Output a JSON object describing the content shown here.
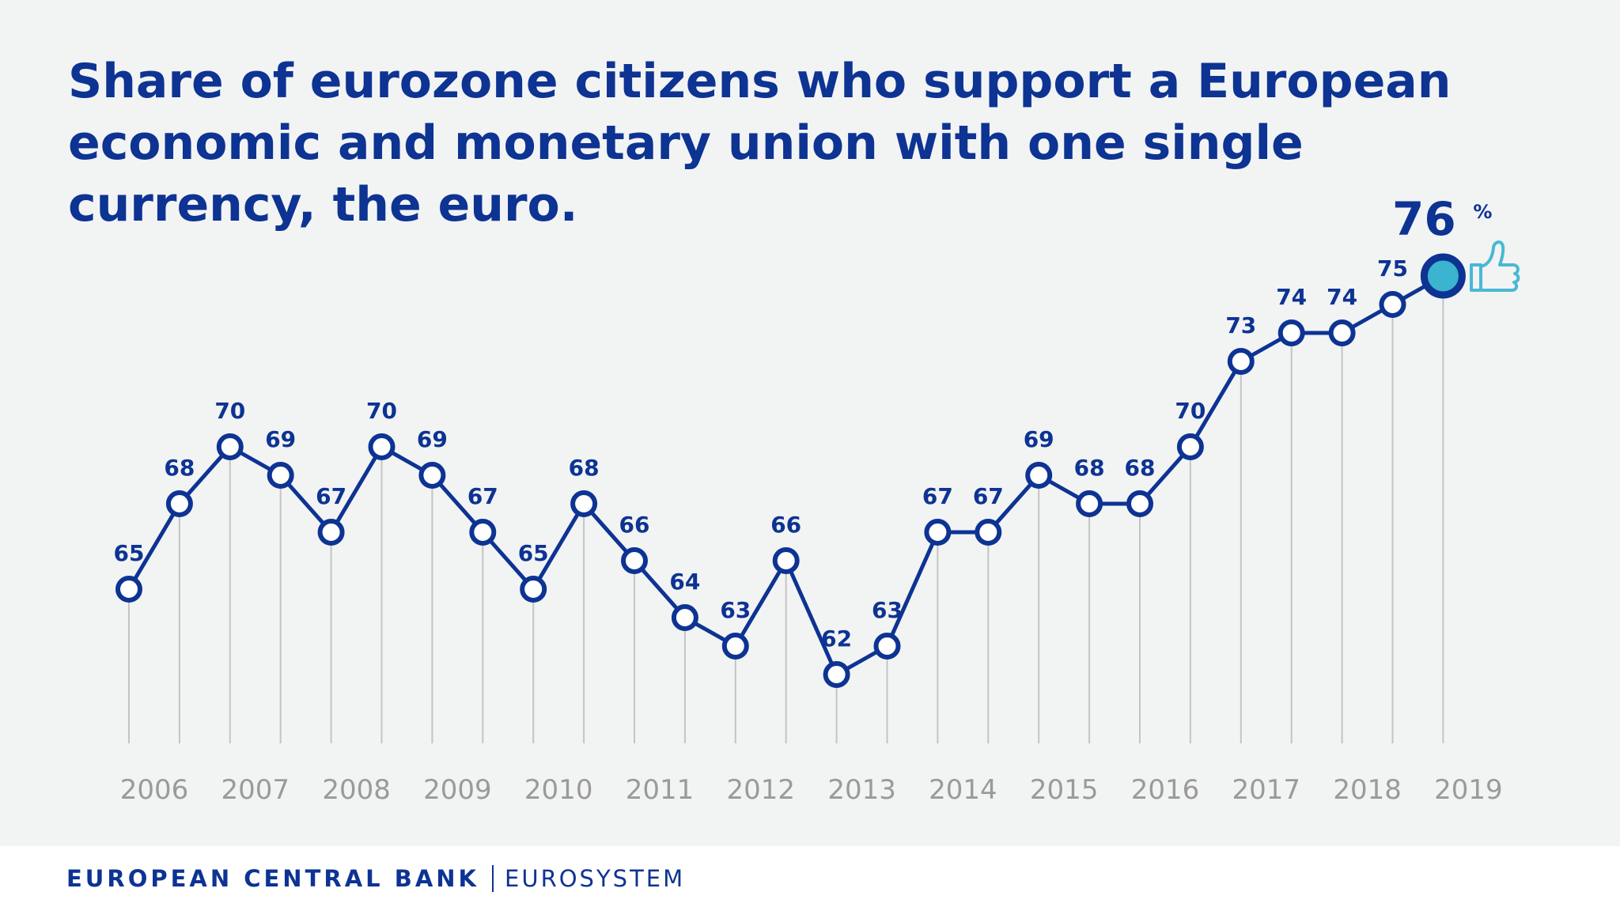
{
  "chart_data": {
    "type": "line",
    "title": "Share of eurozone citizens who support a European economic and monetary union with one single currency, the euro.",
    "title_lines": [
      "Share of eurozone citizens who support a European",
      "economic and monetary union with one single",
      "currency, the euro."
    ],
    "xlabel": "",
    "ylabel": "",
    "x_tick_labels": [
      "2006",
      "2007",
      "2008",
      "2009",
      "2010",
      "2011",
      "2012",
      "2013",
      "2014",
      "2015",
      "2016",
      "2017",
      "2018",
      "2019"
    ],
    "values": [
      65,
      68,
      70,
      69,
      67,
      70,
      69,
      67,
      65,
      68,
      66,
      64,
      63,
      66,
      62,
      63,
      67,
      67,
      69,
      68,
      68,
      70,
      73,
      74,
      74,
      75,
      76
    ],
    "highlight": {
      "index": 26,
      "value": "76",
      "unit": "%"
    },
    "grid": false,
    "legend": "none",
    "colors": {
      "line": "#0d3393",
      "marker_fill": "#ffffff",
      "highlight_fill": "#3bb4cf",
      "stem": "#c4c4c4",
      "tick_label": "#9a9a9a",
      "thumb": "#49b8d4"
    }
  },
  "footer": {
    "bank": "EUROPEAN CENTRAL BANK",
    "system": "EUROSYSTEM"
  }
}
